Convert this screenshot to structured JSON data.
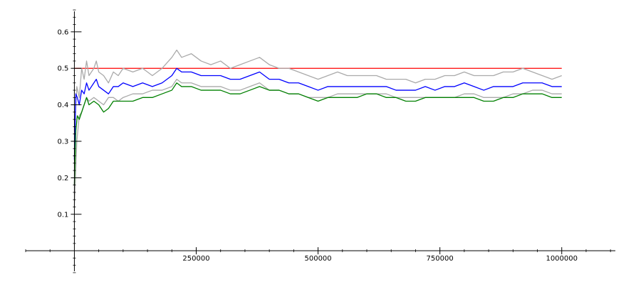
{
  "chart_data": {
    "type": "line",
    "title": "",
    "xlabel": "",
    "ylabel": "",
    "xlim": [
      -100000,
      1110000
    ],
    "ylim": [
      -0.06,
      0.66
    ],
    "grid": false,
    "x_ticks": [
      {
        "value": 250000,
        "label": "250000"
      },
      {
        "value": 500000,
        "label": "500000"
      },
      {
        "value": 750000,
        "label": "750000"
      },
      {
        "value": 1000000,
        "label": "1000000"
      }
    ],
    "y_ticks": [
      {
        "value": 0.1,
        "label": "0.1"
      },
      {
        "value": 0.2,
        "label": "0.2"
      },
      {
        "value": 0.3,
        "label": "0.3"
      },
      {
        "value": 0.4,
        "label": "0.4"
      },
      {
        "value": 0.5,
        "label": "0.5"
      },
      {
        "value": 0.6,
        "label": "0.6"
      }
    ],
    "series": [
      {
        "color": "#ff0000",
        "points": [
          [
            0,
            0.5
          ],
          [
            1000000,
            0.5
          ]
        ]
      },
      {
        "color": "#aaaaaa",
        "points": [
          [
            0,
            0.33
          ],
          [
            5000,
            0.45
          ],
          [
            10000,
            0.42
          ],
          [
            15000,
            0.5
          ],
          [
            20000,
            0.47
          ],
          [
            25000,
            0.52
          ],
          [
            30000,
            0.48
          ],
          [
            40000,
            0.5
          ],
          [
            45000,
            0.52
          ],
          [
            50000,
            0.49
          ],
          [
            60000,
            0.48
          ],
          [
            70000,
            0.46
          ],
          [
            80000,
            0.49
          ],
          [
            90000,
            0.48
          ],
          [
            100000,
            0.5
          ],
          [
            120000,
            0.49
          ],
          [
            140000,
            0.5
          ],
          [
            160000,
            0.48
          ],
          [
            180000,
            0.5
          ],
          [
            200000,
            0.53
          ],
          [
            210000,
            0.55
          ],
          [
            220000,
            0.53
          ],
          [
            240000,
            0.54
          ],
          [
            260000,
            0.52
          ],
          [
            280000,
            0.51
          ],
          [
            300000,
            0.52
          ],
          [
            320000,
            0.5
          ],
          [
            340000,
            0.51
          ],
          [
            360000,
            0.52
          ],
          [
            380000,
            0.53
          ],
          [
            400000,
            0.51
          ],
          [
            420000,
            0.5
          ],
          [
            440000,
            0.5
          ],
          [
            460000,
            0.49
          ],
          [
            480000,
            0.48
          ],
          [
            500000,
            0.47
          ],
          [
            520000,
            0.48
          ],
          [
            540000,
            0.49
          ],
          [
            560000,
            0.48
          ],
          [
            580000,
            0.48
          ],
          [
            600000,
            0.48
          ],
          [
            620000,
            0.48
          ],
          [
            640000,
            0.47
          ],
          [
            660000,
            0.47
          ],
          [
            680000,
            0.47
          ],
          [
            700000,
            0.46
          ],
          [
            720000,
            0.47
          ],
          [
            740000,
            0.47
          ],
          [
            760000,
            0.48
          ],
          [
            780000,
            0.48
          ],
          [
            800000,
            0.49
          ],
          [
            820000,
            0.48
          ],
          [
            840000,
            0.48
          ],
          [
            860000,
            0.48
          ],
          [
            880000,
            0.49
          ],
          [
            900000,
            0.49
          ],
          [
            920000,
            0.5
          ],
          [
            940000,
            0.49
          ],
          [
            960000,
            0.48
          ],
          [
            980000,
            0.47
          ],
          [
            1000000,
            0.48
          ]
        ]
      },
      {
        "color": "#aaaaaa",
        "points": [
          [
            0,
            0.12
          ],
          [
            5000,
            0.3
          ],
          [
            10000,
            0.37
          ],
          [
            15000,
            0.38
          ],
          [
            20000,
            0.4
          ],
          [
            25000,
            0.42
          ],
          [
            30000,
            0.41
          ],
          [
            40000,
            0.42
          ],
          [
            50000,
            0.41
          ],
          [
            60000,
            0.4
          ],
          [
            70000,
            0.42
          ],
          [
            80000,
            0.42
          ],
          [
            90000,
            0.41
          ],
          [
            100000,
            0.42
          ],
          [
            120000,
            0.43
          ],
          [
            140000,
            0.43
          ],
          [
            160000,
            0.44
          ],
          [
            180000,
            0.44
          ],
          [
            200000,
            0.45
          ],
          [
            210000,
            0.47
          ],
          [
            220000,
            0.46
          ],
          [
            240000,
            0.46
          ],
          [
            260000,
            0.45
          ],
          [
            280000,
            0.45
          ],
          [
            300000,
            0.45
          ],
          [
            320000,
            0.44
          ],
          [
            340000,
            0.44
          ],
          [
            360000,
            0.45
          ],
          [
            380000,
            0.46
          ],
          [
            400000,
            0.44
          ],
          [
            420000,
            0.44
          ],
          [
            440000,
            0.43
          ],
          [
            460000,
            0.43
          ],
          [
            480000,
            0.42
          ],
          [
            500000,
            0.42
          ],
          [
            520000,
            0.42
          ],
          [
            540000,
            0.43
          ],
          [
            560000,
            0.43
          ],
          [
            580000,
            0.43
          ],
          [
            600000,
            0.43
          ],
          [
            620000,
            0.43
          ],
          [
            640000,
            0.43
          ],
          [
            660000,
            0.42
          ],
          [
            680000,
            0.42
          ],
          [
            700000,
            0.42
          ],
          [
            720000,
            0.42
          ],
          [
            740000,
            0.42
          ],
          [
            760000,
            0.42
          ],
          [
            780000,
            0.42
          ],
          [
            800000,
            0.43
          ],
          [
            820000,
            0.43
          ],
          [
            840000,
            0.42
          ],
          [
            860000,
            0.42
          ],
          [
            880000,
            0.42
          ],
          [
            900000,
            0.43
          ],
          [
            920000,
            0.43
          ],
          [
            940000,
            0.44
          ],
          [
            960000,
            0.44
          ],
          [
            980000,
            0.43
          ],
          [
            1000000,
            0.43
          ]
        ]
      },
      {
        "color": "#0000ff",
        "points": [
          [
            0,
            0.25
          ],
          [
            3000,
            0.43
          ],
          [
            6000,
            0.42
          ],
          [
            10000,
            0.4
          ],
          [
            15000,
            0.44
          ],
          [
            20000,
            0.43
          ],
          [
            25000,
            0.46
          ],
          [
            30000,
            0.44
          ],
          [
            40000,
            0.46
          ],
          [
            45000,
            0.47
          ],
          [
            50000,
            0.45
          ],
          [
            60000,
            0.44
          ],
          [
            70000,
            0.43
          ],
          [
            80000,
            0.45
          ],
          [
            90000,
            0.45
          ],
          [
            100000,
            0.46
          ],
          [
            120000,
            0.45
          ],
          [
            140000,
            0.46
          ],
          [
            160000,
            0.45
          ],
          [
            180000,
            0.46
          ],
          [
            200000,
            0.48
          ],
          [
            210000,
            0.5
          ],
          [
            220000,
            0.49
          ],
          [
            240000,
            0.49
          ],
          [
            260000,
            0.48
          ],
          [
            280000,
            0.48
          ],
          [
            300000,
            0.48
          ],
          [
            320000,
            0.47
          ],
          [
            340000,
            0.47
          ],
          [
            360000,
            0.48
          ],
          [
            380000,
            0.49
          ],
          [
            400000,
            0.47
          ],
          [
            420000,
            0.47
          ],
          [
            440000,
            0.46
          ],
          [
            460000,
            0.46
          ],
          [
            480000,
            0.45
          ],
          [
            500000,
            0.44
          ],
          [
            520000,
            0.45
          ],
          [
            540000,
            0.45
          ],
          [
            560000,
            0.45
          ],
          [
            580000,
            0.45
          ],
          [
            600000,
            0.45
          ],
          [
            620000,
            0.45
          ],
          [
            640000,
            0.45
          ],
          [
            660000,
            0.44
          ],
          [
            680000,
            0.44
          ],
          [
            700000,
            0.44
          ],
          [
            720000,
            0.45
          ],
          [
            740000,
            0.44
          ],
          [
            760000,
            0.45
          ],
          [
            780000,
            0.45
          ],
          [
            800000,
            0.46
          ],
          [
            820000,
            0.45
          ],
          [
            840000,
            0.44
          ],
          [
            860000,
            0.45
          ],
          [
            880000,
            0.45
          ],
          [
            900000,
            0.45
          ],
          [
            920000,
            0.46
          ],
          [
            940000,
            0.46
          ],
          [
            960000,
            0.46
          ],
          [
            980000,
            0.45
          ],
          [
            1000000,
            0.45
          ]
        ]
      },
      {
        "color": "#008000",
        "points": [
          [
            0,
            0.18
          ],
          [
            3000,
            0.33
          ],
          [
            6000,
            0.37
          ],
          [
            10000,
            0.36
          ],
          [
            15000,
            0.38
          ],
          [
            20000,
            0.4
          ],
          [
            25000,
            0.42
          ],
          [
            30000,
            0.4
          ],
          [
            40000,
            0.41
          ],
          [
            50000,
            0.4
          ],
          [
            60000,
            0.38
          ],
          [
            70000,
            0.39
          ],
          [
            80000,
            0.41
          ],
          [
            90000,
            0.41
          ],
          [
            100000,
            0.41
          ],
          [
            120000,
            0.41
          ],
          [
            140000,
            0.42
          ],
          [
            160000,
            0.42
          ],
          [
            180000,
            0.43
          ],
          [
            200000,
            0.44
          ],
          [
            210000,
            0.46
          ],
          [
            220000,
            0.45
          ],
          [
            240000,
            0.45
          ],
          [
            260000,
            0.44
          ],
          [
            280000,
            0.44
          ],
          [
            300000,
            0.44
          ],
          [
            320000,
            0.43
          ],
          [
            340000,
            0.43
          ],
          [
            360000,
            0.44
          ],
          [
            380000,
            0.45
          ],
          [
            400000,
            0.44
          ],
          [
            420000,
            0.44
          ],
          [
            440000,
            0.43
          ],
          [
            460000,
            0.43
          ],
          [
            480000,
            0.42
          ],
          [
            500000,
            0.41
          ],
          [
            520000,
            0.42
          ],
          [
            540000,
            0.42
          ],
          [
            560000,
            0.42
          ],
          [
            580000,
            0.42
          ],
          [
            600000,
            0.43
          ],
          [
            620000,
            0.43
          ],
          [
            640000,
            0.42
          ],
          [
            660000,
            0.42
          ],
          [
            680000,
            0.41
          ],
          [
            700000,
            0.41
          ],
          [
            720000,
            0.42
          ],
          [
            740000,
            0.42
          ],
          [
            760000,
            0.42
          ],
          [
            780000,
            0.42
          ],
          [
            800000,
            0.42
          ],
          [
            820000,
            0.42
          ],
          [
            840000,
            0.41
          ],
          [
            860000,
            0.41
          ],
          [
            880000,
            0.42
          ],
          [
            900000,
            0.42
          ],
          [
            920000,
            0.43
          ],
          [
            940000,
            0.43
          ],
          [
            960000,
            0.43
          ],
          [
            980000,
            0.42
          ],
          [
            1000000,
            0.42
          ]
        ]
      }
    ]
  }
}
